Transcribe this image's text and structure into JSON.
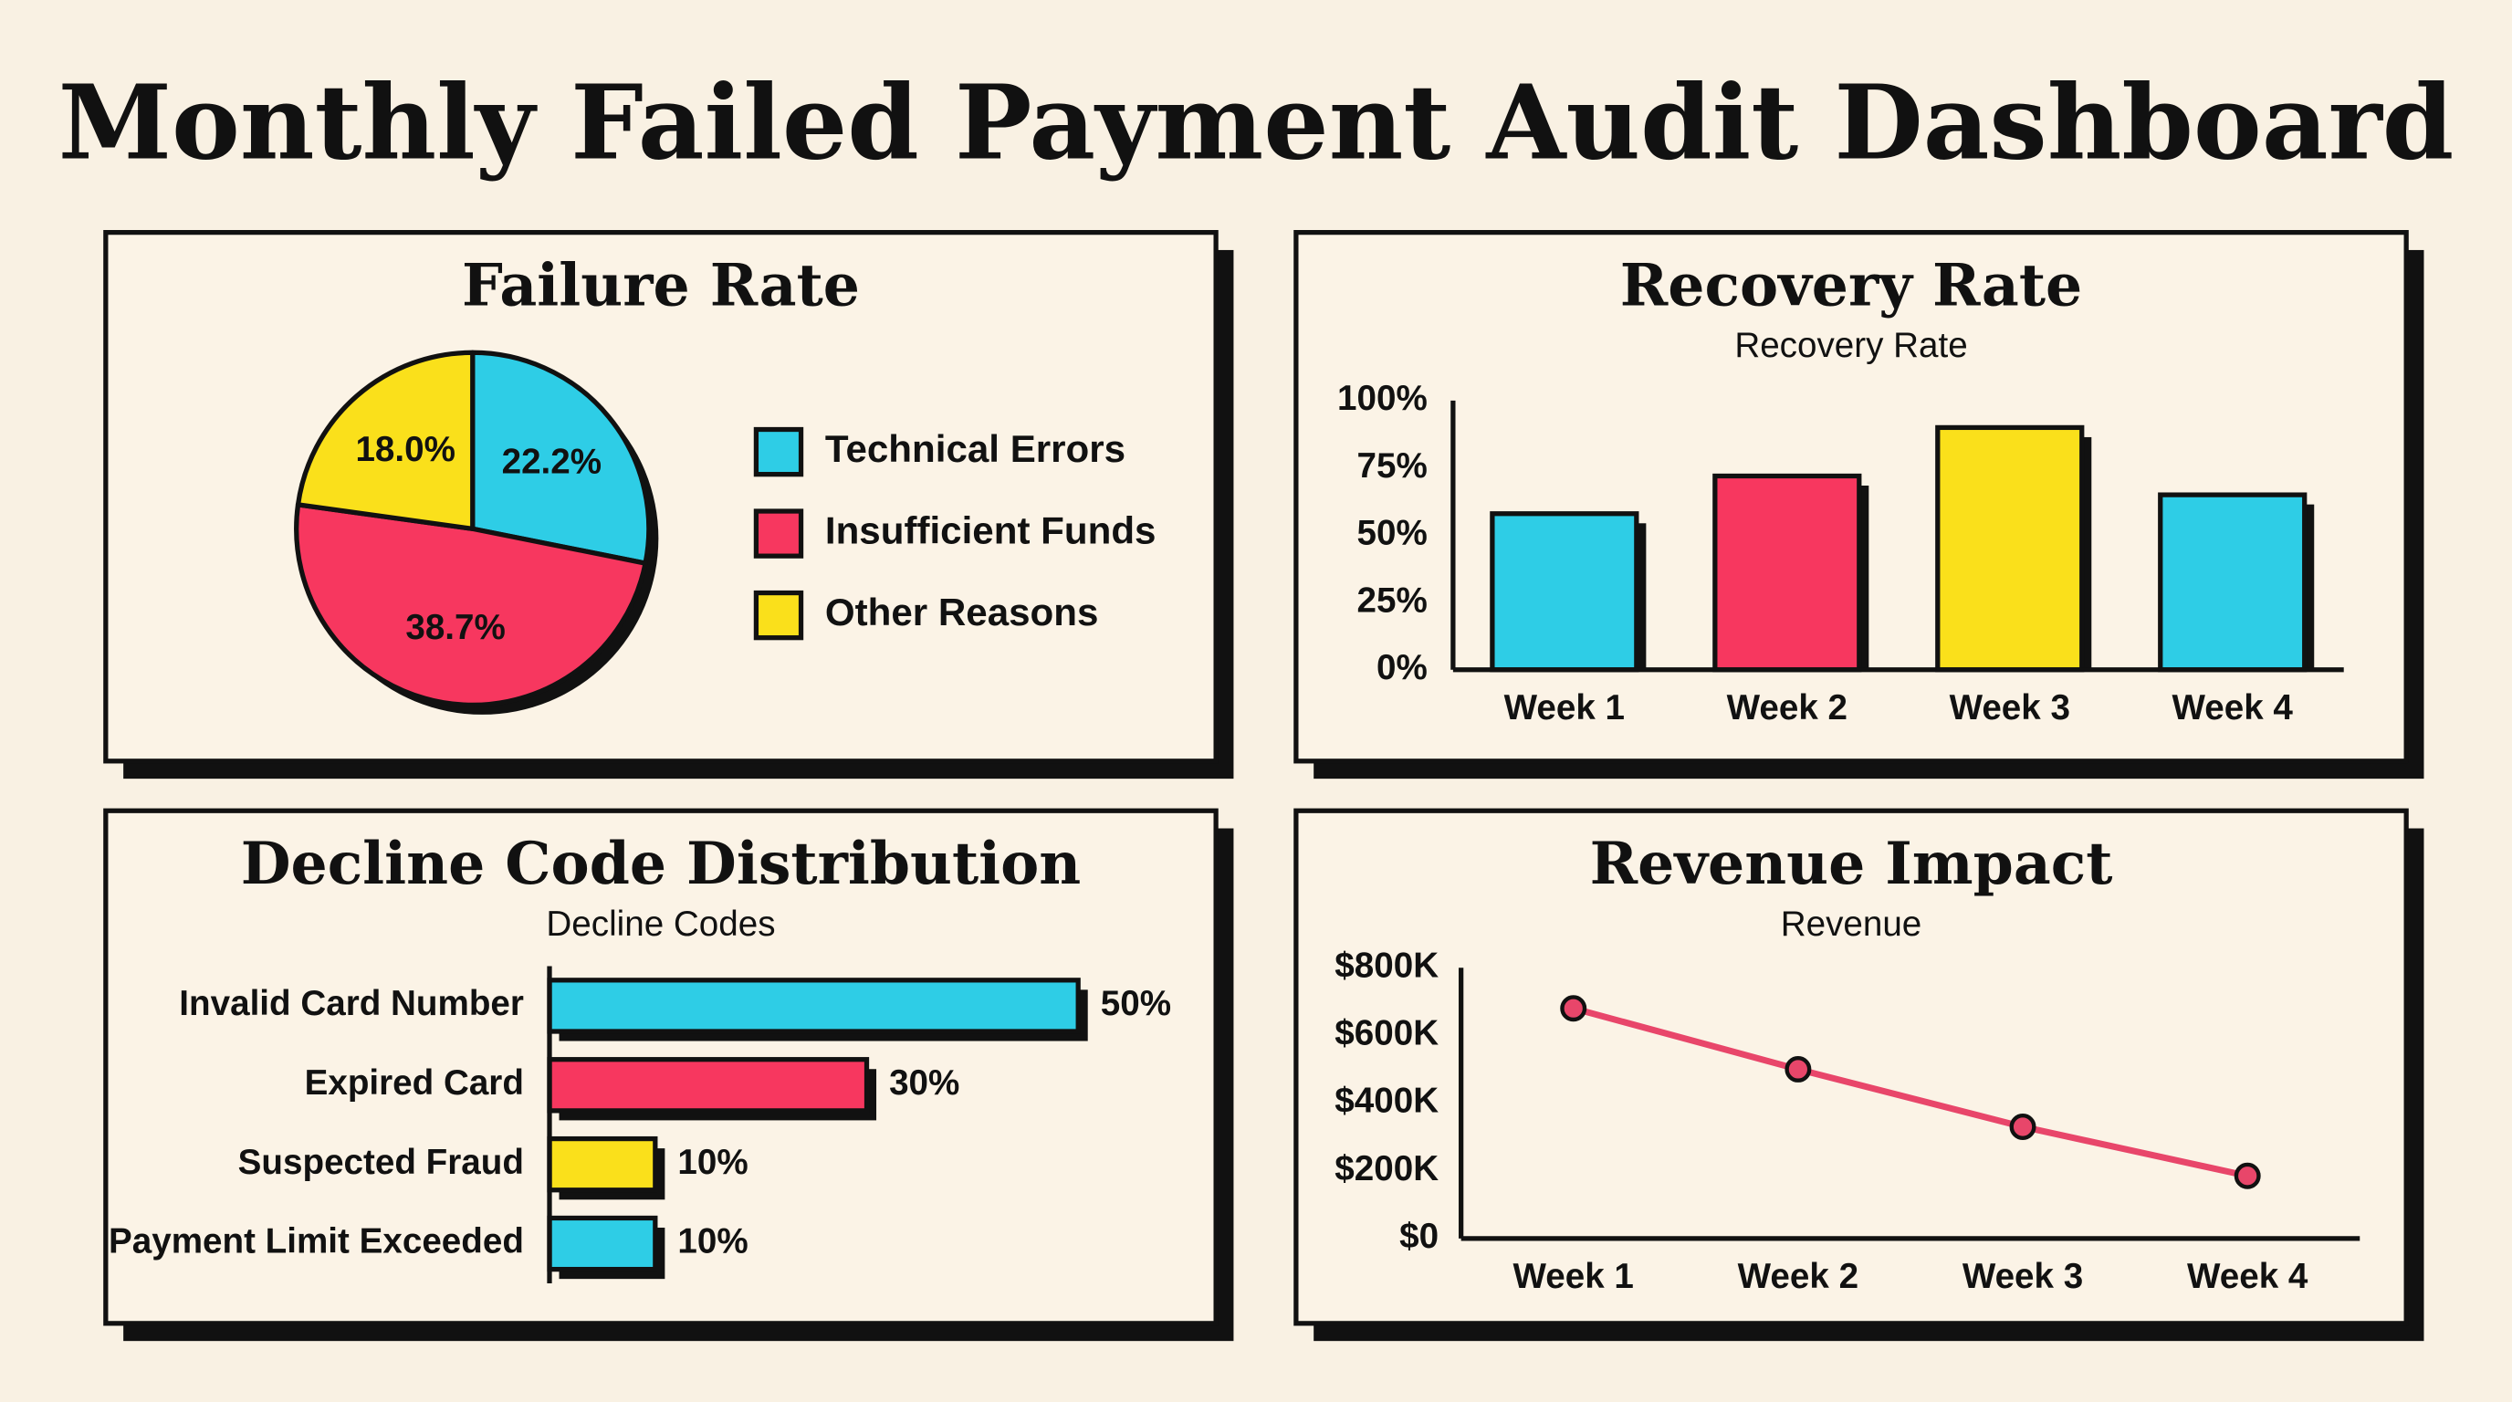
{
  "title": "Monthly Failed Payment Audit Dashboard",
  "chart_data": [
    {
      "type": "pie",
      "title": "Failure Rate",
      "categories": [
        "Technical Errors",
        "Insufficient Funds",
        "Other Reasons"
      ],
      "values": [
        22.2,
        38.7,
        18.0
      ],
      "value_labels": [
        "22.2%",
        "38.7%",
        "18.0%"
      ],
      "colors": [
        "#2ecde6",
        "#f7375f",
        "#fae01b"
      ]
    },
    {
      "type": "bar",
      "title": "Recovery Rate",
      "subtitle": "Recovery Rate",
      "categories": [
        "Week 1",
        "Week 2",
        "Week 3",
        "Week 4"
      ],
      "values": [
        58,
        72,
        90,
        65
      ],
      "colors": [
        "#2ecde6",
        "#f7375f",
        "#fae01b",
        "#2ecde6"
      ],
      "ylim": [
        0,
        100
      ],
      "yticks": [
        {
          "value": 0,
          "label": "0%"
        },
        {
          "value": 25,
          "label": "25%"
        },
        {
          "value": 50,
          "label": "50%"
        },
        {
          "value": 75,
          "label": "75%"
        },
        {
          "value": 100,
          "label": "100%"
        }
      ]
    },
    {
      "type": "hbar",
      "title": "Decline Code Distribution",
      "subtitle": "Decline Codes",
      "categories": [
        "Invalid Card Number",
        "Expired Card",
        "Suspected Fraud",
        "Payment Limit Exceeded"
      ],
      "values": [
        50,
        30,
        10,
        10
      ],
      "value_labels": [
        "50%",
        "30%",
        "10%",
        "10%"
      ],
      "colors": [
        "#2ecde6",
        "#f7375f",
        "#fae01b",
        "#2ecde6"
      ]
    },
    {
      "type": "line",
      "title": "Revenue Impact",
      "subtitle": "Revenue",
      "categories": [
        "Week 1",
        "Week 2",
        "Week 3",
        "Week 4"
      ],
      "values": [
        680000,
        500000,
        330000,
        185000
      ],
      "color": "#e8466a",
      "ylim": [
        0,
        800000
      ],
      "yticks": [
        {
          "value": 0,
          "label": "$0"
        },
        {
          "value": 200000,
          "label": "$200K"
        },
        {
          "value": 400000,
          "label": "$400K"
        },
        {
          "value": 600000,
          "label": "$600K"
        },
        {
          "value": 800000,
          "label": "$800K"
        }
      ]
    }
  ]
}
